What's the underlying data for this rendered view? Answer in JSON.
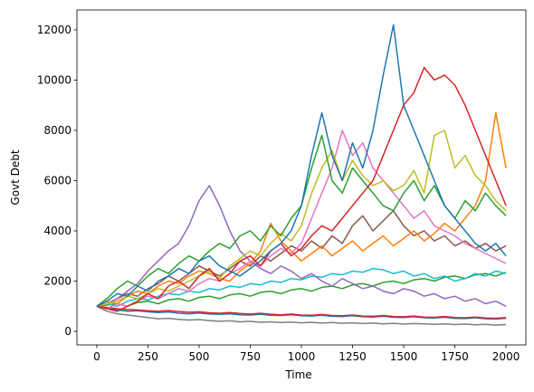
{
  "chart_data": {
    "type": "line",
    "x_label": "Time",
    "y_label": "Govt Debt",
    "x": [
      0,
      50,
      100,
      150,
      200,
      250,
      300,
      350,
      400,
      450,
      500,
      550,
      600,
      650,
      700,
      750,
      800,
      850,
      900,
      950,
      1000,
      1050,
      1100,
      1150,
      1200,
      1250,
      1300,
      1350,
      1400,
      1450,
      1500,
      1550,
      1600,
      1650,
      1700,
      1750,
      1800,
      1850,
      1900,
      1950,
      2000
    ],
    "xlim": [
      -97,
      2097
    ],
    "xticks": [
      0,
      250,
      500,
      750,
      1000,
      1250,
      1500,
      1750,
      2000
    ],
    "ylim": [
      -540,
      12790
    ],
    "yticks": [
      0,
      2000,
      4000,
      6000,
      8000,
      10000,
      12000
    ],
    "series": [
      {
        "color": "#7f7f7f",
        "values": [
          1000,
          800,
          700,
          650,
          600,
          550,
          500,
          520,
          480,
          450,
          470,
          430,
          400,
          420,
          380,
          400,
          360,
          380,
          350,
          370,
          340,
          360,
          330,
          350,
          320,
          340,
          310,
          330,
          300,
          320,
          290,
          310,
          300,
          280,
          300,
          270,
          290,
          260,
          280,
          250,
          270
        ]
      },
      {
        "color": "#1f77b4",
        "values": [
          1000,
          900,
          850,
          800,
          820,
          780,
          750,
          770,
          720,
          700,
          730,
          690,
          680,
          700,
          660,
          650,
          680,
          640,
          630,
          660,
          620,
          610,
          640,
          600,
          590,
          620,
          580,
          570,
          600,
          560,
          550,
          580,
          540,
          530,
          560,
          520,
          510,
          540,
          500,
          490,
          520
        ]
      },
      {
        "color": "#d62728",
        "values": [
          1000,
          950,
          900,
          870,
          850,
          820,
          800,
          830,
          790,
          760,
          780,
          740,
          720,
          750,
          710,
          690,
          720,
          680,
          660,
          690,
          650,
          640,
          670,
          630,
          620,
          650,
          610,
          600,
          630,
          590,
          580,
          610,
          570,
          560,
          590,
          550,
          540,
          570,
          530,
          520,
          550
        ]
      },
      {
        "color": "#2ca02c",
        "values": [
          1000,
          1050,
          1100,
          1000,
          1150,
          1200,
          1100,
          1250,
          1300,
          1200,
          1350,
          1400,
          1300,
          1450,
          1500,
          1400,
          1550,
          1600,
          1500,
          1650,
          1700,
          1600,
          1750,
          1800,
          1700,
          1850,
          1900,
          1800,
          1950,
          2000,
          1900,
          2050,
          2100,
          2000,
          2150,
          2200,
          2100,
          2250,
          2300,
          2200,
          2350
        ]
      },
      {
        "color": "#17becf",
        "values": [
          1000,
          1100,
          1000,
          1200,
          1300,
          1250,
          1400,
          1500,
          1450,
          1600,
          1550,
          1700,
          1650,
          1800,
          1750,
          1900,
          1850,
          2000,
          1950,
          2100,
          2050,
          2200,
          2150,
          2300,
          2250,
          2400,
          2350,
          2500,
          2450,
          2300,
          2400,
          2200,
          2300,
          2100,
          2200,
          2000,
          2100,
          2300,
          2200,
          2400,
          2300
        ]
      },
      {
        "color": "#8c564b",
        "values": [
          1000,
          1100,
          1300,
          1500,
          1400,
          1700,
          1900,
          2200,
          2000,
          2300,
          2600,
          2400,
          2200,
          2500,
          2800,
          2600,
          3000,
          2800,
          3100,
          3400,
          3200,
          3600,
          3300,
          3800,
          3500,
          4200,
          4600,
          4000,
          4400,
          4800,
          4200,
          3800,
          4000,
          3600,
          3800,
          3400,
          3600,
          3300,
          3500,
          3200,
          3400
        ]
      },
      {
        "color": "#9467bd",
        "values": [
          1000,
          1100,
          1300,
          1600,
          1900,
          2400,
          2800,
          3200,
          3500,
          4200,
          5200,
          5800,
          5000,
          4000,
          3200,
          2800,
          2500,
          2300,
          2600,
          2400,
          2100,
          2300,
          2000,
          1800,
          2100,
          1900,
          1700,
          1800,
          1600,
          1500,
          1700,
          1600,
          1400,
          1500,
          1300,
          1400,
          1200,
          1300,
          1100,
          1200,
          1000
        ]
      },
      {
        "color": "#ff7f0e",
        "values": [
          1000,
          1200,
          1100,
          1400,
          1600,
          1500,
          1800,
          2000,
          1900,
          2200,
          2400,
          2300,
          2100,
          2000,
          2400,
          2700,
          3200,
          4300,
          3600,
          3200,
          2800,
          3100,
          3400,
          3000,
          3300,
          3600,
          3200,
          3500,
          3800,
          3400,
          3700,
          4000,
          3600,
          3900,
          4300,
          4000,
          4500,
          5000,
          6000,
          8700,
          6500
        ]
      },
      {
        "color": "#e377c2",
        "values": [
          1000,
          900,
          1100,
          1000,
          1200,
          1400,
          1300,
          1500,
          1700,
          1600,
          1900,
          2100,
          2000,
          2300,
          2500,
          2800,
          2600,
          3000,
          3300,
          3100,
          3500,
          4500,
          5500,
          6500,
          8000,
          7000,
          7500,
          6500,
          6000,
          5500,
          5000,
          4500,
          4800,
          4200,
          4000,
          3800,
          3500,
          3300,
          3100,
          2900,
          2700
        ]
      },
      {
        "color": "#bcbd22",
        "values": [
          1000,
          1100,
          1200,
          1400,
          1300,
          1500,
          1700,
          1600,
          1800,
          2000,
          2200,
          2400,
          2100,
          2600,
          2900,
          3200,
          3000,
          3500,
          3900,
          3600,
          4200,
          5500,
          6500,
          7200,
          6000,
          6800,
          6200,
          5800,
          6000,
          5600,
          5800,
          6400,
          5500,
          7800,
          8000,
          6500,
          7000,
          6200,
          5800,
          5200,
          4800
        ]
      },
      {
        "color": "#2ca02c",
        "values": [
          1000,
          1300,
          1700,
          2000,
          1800,
          2200,
          2500,
          2300,
          2700,
          3000,
          2800,
          3200,
          3500,
          3300,
          3800,
          4000,
          3600,
          4200,
          3800,
          4500,
          5000,
          6500,
          7800,
          6000,
          5500,
          6500,
          6000,
          5500,
          5000,
          4800,
          5500,
          6000,
          5200,
          5800,
          5000,
          4500,
          5200,
          4800,
          5500,
          5000,
          4600
        ]
      },
      {
        "color": "#d62728",
        "values": [
          1000,
          900,
          800,
          1000,
          1200,
          1500,
          1300,
          1800,
          2000,
          1700,
          2200,
          2500,
          2000,
          2300,
          2800,
          3000,
          2600,
          3200,
          3500,
          3000,
          3300,
          3800,
          4200,
          4000,
          4500,
          5000,
          5500,
          6000,
          7000,
          8000,
          9000,
          9500,
          10500,
          10000,
          10200,
          9800,
          9000,
          8000,
          7000,
          6000,
          5000
        ]
      },
      {
        "color": "#1f77b4",
        "values": [
          1000,
          1200,
          1500,
          1400,
          1800,
          1600,
          2000,
          2200,
          2500,
          2300,
          2800,
          3000,
          2600,
          2400,
          2200,
          2500,
          2800,
          3200,
          3500,
          4000,
          5000,
          7000,
          8700,
          7000,
          6000,
          7500,
          6500,
          8000,
          10200,
          12200,
          9000,
          8000,
          7000,
          6000,
          5000,
          4500,
          4000,
          3500,
          3200,
          3500,
          3000
        ]
      }
    ]
  }
}
